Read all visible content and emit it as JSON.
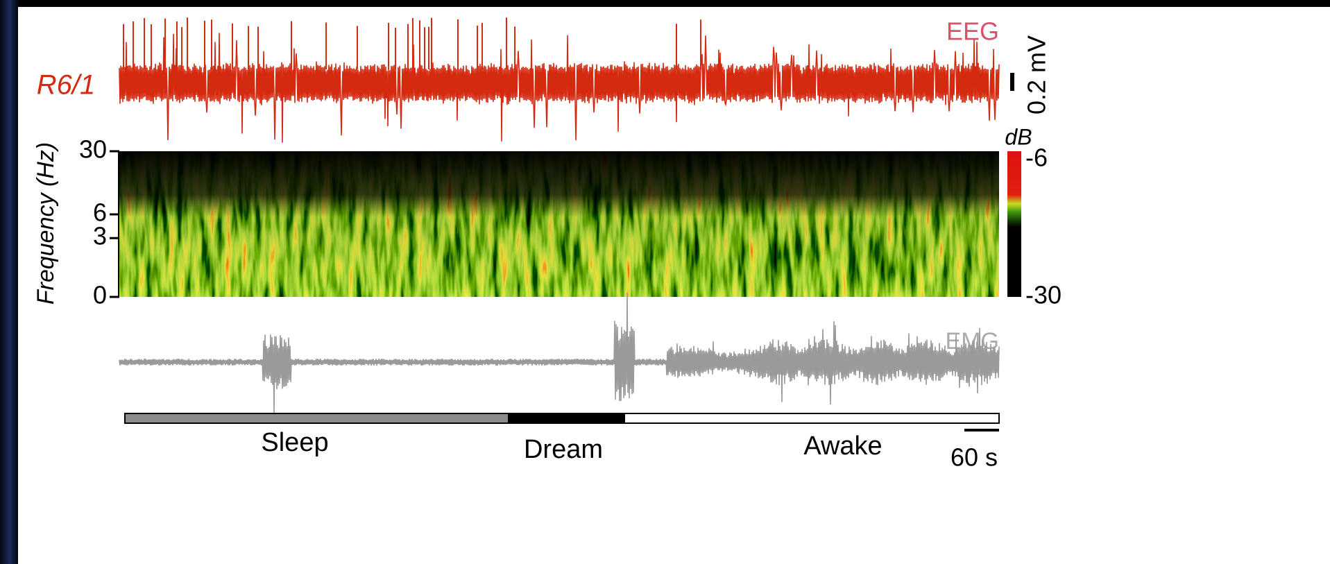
{
  "eeg": {
    "label": "R6/1",
    "title": "EEG",
    "scale_label": "0.2 mV",
    "color": "#d42a10"
  },
  "spectrogram": {
    "ylabel": "Frequency (Hz)",
    "ylim": [
      0,
      30
    ],
    "yticks": [
      0,
      3,
      6,
      30
    ],
    "log_scale": true,
    "colorbar": {
      "label": "dB",
      "clim": [
        -30,
        -6
      ],
      "ticks": [
        -6,
        -30
      ]
    }
  },
  "emg": {
    "title": "EMG",
    "color": "#9a9a9a"
  },
  "states": [
    {
      "label": "Sleep",
      "color": "#8c8c8c"
    },
    {
      "label": "Dream",
      "color": "#000000"
    },
    {
      "label": "Awake",
      "color": "#ffffff"
    }
  ],
  "time_scale": {
    "label": "60 s"
  }
}
